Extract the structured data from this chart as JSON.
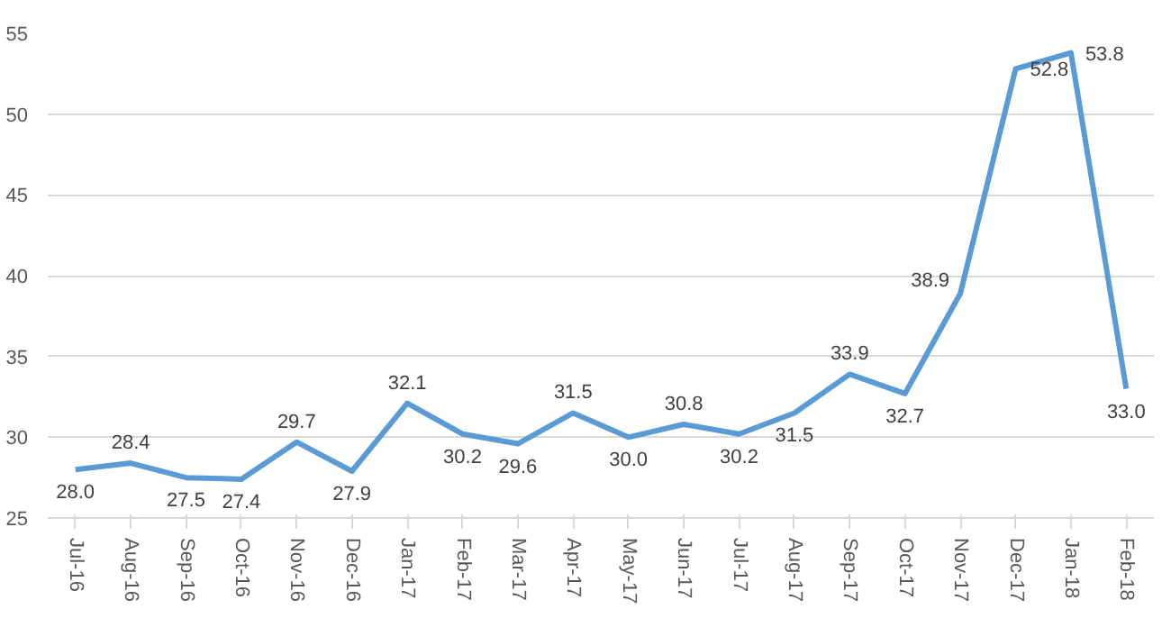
{
  "chart_data": {
    "type": "line",
    "categories": [
      "Jul-16",
      "Aug-16",
      "Sep-16",
      "Oct-16",
      "Nov-16",
      "Dec-16",
      "Jan-17",
      "Feb-17",
      "Mar-17",
      "Apr-17",
      "May-17",
      "Jun-17",
      "Jul-17",
      "Aug-17",
      "Sep-17",
      "Oct-17",
      "Nov-17",
      "Dec-17",
      "Jan-18",
      "Feb-18"
    ],
    "series": [
      {
        "color": "#5b9bd5",
        "values": [
          28.0,
          28.4,
          27.5,
          27.4,
          29.7,
          27.9,
          32.1,
          30.2,
          29.6,
          31.5,
          30.0,
          30.8,
          30.2,
          31.5,
          33.9,
          32.7,
          38.9,
          52.8,
          53.8,
          33.0
        ],
        "value_labels": [
          "28.0",
          "28.4",
          "27.5",
          "27.4",
          "29.7",
          "27.9",
          "32.1",
          "30.2",
          "29.6",
          "31.5",
          "30.0",
          "30.8",
          "30.2",
          "31.5",
          "33.9",
          "32.7",
          "38.9",
          "52.8",
          "53.8",
          "33.0"
        ]
      }
    ],
    "ylim": [
      25,
      55
    ],
    "yticks": [
      25,
      30,
      35,
      40,
      45,
      50,
      55
    ],
    "grid": "y",
    "marker": "none",
    "line_style": "solid"
  }
}
